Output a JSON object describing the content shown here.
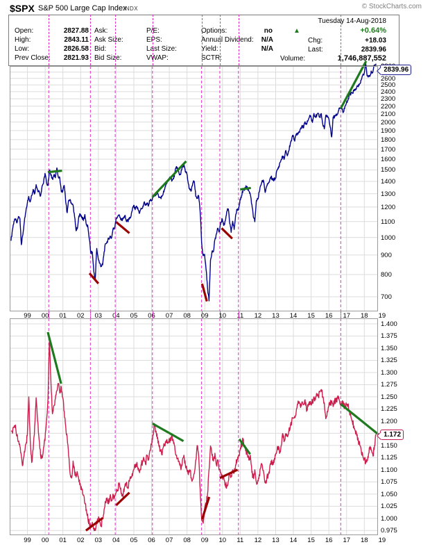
{
  "header": {
    "symbol": "$SPX",
    "name": "S&P 500 Large Cap Index",
    "exchange": "INDX",
    "copyright": "© StockCharts.com",
    "date": "Tuesday 14-Aug-2018"
  },
  "quote": {
    "col1": [
      {
        "label": "Open:",
        "value": "2827.88"
      },
      {
        "label": "High:",
        "value": "2843.11"
      },
      {
        "label": "Low:",
        "value": "2826.58"
      },
      {
        "label": "Prev Close:",
        "value": "2821.93"
      }
    ],
    "col2": [
      "Ask:",
      "Ask Size:",
      "Bid:",
      "Bid Size:"
    ],
    "col3": [
      "P/E:",
      "EPS:",
      "Last Size:",
      "VWAP:"
    ],
    "col4": [
      {
        "label": "Options:",
        "value": "no"
      },
      {
        "label": "Annual Dividend:",
        "value": "N/A"
      },
      {
        "label": "Yield:",
        "value": "N/A"
      },
      {
        "label": "SCTR:",
        "value": ""
      }
    ],
    "up_arrow": "▲",
    "change_pct": "+0.64%",
    "chg_label": "Chg:",
    "chg_value": "+18.03",
    "last_label": "Last:",
    "last_value": "2839.96",
    "volume_label": "Volume:",
    "volume_value": "1,746,887,552"
  },
  "colors": {
    "price_line": "#00008B",
    "ratio_line": "#CC1E4C",
    "trend_green": "#1F7A1F",
    "trend_red": "#990000",
    "event_line_magenta": "#E52EC8",
    "grid": "#DCDCDC",
    "chart_border": "#999999",
    "pct_green": "#1F7A1F"
  },
  "chart_data": [
    {
      "type": "line",
      "series_name": "$SPX S&P 500 Large Cap Index",
      "scale": "log",
      "x_start_year": 1998,
      "step_months": 1,
      "x_tick_years": [
        1999,
        2000,
        2001,
        2002,
        2003,
        2004,
        2005,
        2006,
        2007,
        2008,
        2009,
        2010,
        2011,
        2012,
        2013,
        2014,
        2015,
        2016,
        2017,
        2018,
        2019
      ],
      "x_tick_labels": [
        "99",
        "00",
        "01",
        "02",
        "03",
        "04",
        "05",
        "06",
        "07",
        "08",
        "09",
        "10",
        "11",
        "12",
        "13",
        "14",
        "15",
        "16",
        "17",
        "18",
        "19"
      ],
      "ylim": [
        640,
        2800
      ],
      "y_ticks": {
        "min": 700,
        "max": 2800,
        "step": 100,
        "decimals": 0
      },
      "last_label": "2839.96",
      "values": [
        980,
        1049,
        1102,
        1112,
        1091,
        1134,
        1121,
        957,
        1017,
        1099,
        1164,
        1229,
        1279,
        1238,
        1286,
        1335,
        1302,
        1373,
        1329,
        1320,
        1283,
        1363,
        1389,
        1469,
        1394,
        1366,
        1499,
        1452,
        1421,
        1455,
        1431,
        1518,
        1437,
        1429,
        1315,
        1320,
        1366,
        1240,
        1160,
        1249,
        1256,
        1224,
        1211,
        1134,
        1041,
        1060,
        1139,
        1148,
        1130,
        1107,
        1147,
        1077,
        1067,
        990,
        912,
        916,
        815,
        776,
        936,
        880,
        856,
        841,
        848,
        917,
        964,
        975,
        990,
        1008,
        996,
        1051,
        1058,
        1112,
        1131,
        1145,
        1126,
        1107,
        1121,
        1141,
        1102,
        1104,
        1115,
        1130,
        1174,
        1212,
        1181,
        1204,
        1181,
        1157,
        1192,
        1191,
        1234,
        1220,
        1229,
        1207,
        1249,
        1248,
        1280,
        1281,
        1295,
        1311,
        1270,
        1270,
        1277,
        1304,
        1336,
        1378,
        1401,
        1418,
        1438,
        1407,
        1421,
        1482,
        1531,
        1503,
        1455,
        1474,
        1527,
        1549,
        1481,
        1468,
        1379,
        1331,
        1323,
        1386,
        1400,
        1280,
        1267,
        1283,
        1166,
        969,
        896,
        903,
        826,
        735,
        683,
        873,
        919,
        919,
        987,
        1021,
        1057,
        1036,
        1096,
        1115,
        1074,
        1104,
        1169,
        1187,
        1089,
        1031,
        1102,
        1049,
        1141,
        1183,
        1181,
        1258,
        1286,
        1327,
        1326,
        1364,
        1345,
        1321,
        1292,
        1219,
        1131,
        1099,
        1247,
        1258,
        1312,
        1366,
        1408,
        1398,
        1310,
        1362,
        1379,
        1407,
        1441,
        1412,
        1416,
        1426,
        1498,
        1515,
        1569,
        1598,
        1631,
        1606,
        1686,
        1633,
        1682,
        1757,
        1806,
        1848,
        1783,
        1859,
        1872,
        1884,
        1924,
        1960,
        1931,
        2003,
        1972,
        2018,
        2068,
        2059,
        1995,
        2105,
        2068,
        2086,
        2107,
        2063,
        2104,
        1972,
        1920,
        2079,
        2080,
        2044,
        1940,
        1829,
        2060,
        2065,
        2097,
        2099,
        2174,
        2171,
        2168,
        2126,
        2199,
        2239,
        2279,
        2364,
        2363,
        2384,
        2412,
        2423,
        2470,
        2472,
        2519,
        2575,
        2648,
        2674,
        2872,
        2640,
        2641,
        2648,
        2705,
        2718,
        2816,
        2839.96
      ],
      "trendlines": [
        {
          "x1": 2000.15,
          "y1": 1480,
          "x2": 2000.95,
          "y2": 1493,
          "color": "green"
        },
        {
          "x1": 2002.5,
          "y1": 806,
          "x2": 2003.0,
          "y2": 758,
          "color": "red"
        },
        {
          "x1": 2004.0,
          "y1": 1097,
          "x2": 2004.75,
          "y2": 1026,
          "color": "red"
        },
        {
          "x1": 2006.05,
          "y1": 1275,
          "x2": 2007.95,
          "y2": 1580,
          "color": "green"
        },
        {
          "x1": 2008.85,
          "y1": 757,
          "x2": 2009.12,
          "y2": 681,
          "color": "red"
        },
        {
          "x1": 2009.95,
          "y1": 1057,
          "x2": 2010.55,
          "y2": 993,
          "color": "red"
        },
        {
          "x1": 2011.0,
          "y1": 1334,
          "x2": 2011.6,
          "y2": 1346,
          "color": "green"
        },
        {
          "x1": 2016.67,
          "y1": 2170,
          "x2": 2018.1,
          "y2": 2884,
          "color": "green"
        }
      ],
      "vlines": [
        2000.2,
        2002.55,
        2003.95,
        2006.05,
        2008.82,
        2009.85,
        2010.9,
        2016.67
      ]
    },
    {
      "type": "line",
      "series_name": "lower ratio panel",
      "scale": "linear",
      "x_start_year": 1998,
      "step_months": 1,
      "x_tick_years": [
        1999,
        2000,
        2001,
        2002,
        2003,
        2004,
        2005,
        2006,
        2007,
        2008,
        2009,
        2010,
        2011,
        2012,
        2013,
        2014,
        2015,
        2016,
        2017,
        2018,
        2019
      ],
      "x_tick_labels": [
        "99",
        "00",
        "01",
        "02",
        "03",
        "04",
        "05",
        "06",
        "07",
        "08",
        "09",
        "10",
        "11",
        "12",
        "13",
        "14",
        "15",
        "16",
        "17",
        "18",
        "19"
      ],
      "ylim": [
        0.965,
        1.411
      ],
      "y_ticks": {
        "min": 0.975,
        "max": 1.4,
        "step": 0.025,
        "decimals": 3
      },
      "last_label": "1.172",
      "values": [
        1.18,
        1.175,
        1.188,
        1.192,
        1.17,
        1.158,
        1.148,
        1.128,
        1.11,
        1.138,
        1.152,
        1.17,
        1.25,
        1.16,
        1.115,
        1.142,
        1.19,
        1.248,
        1.2,
        1.162,
        1.13,
        1.124,
        1.146,
        1.16,
        1.2,
        1.245,
        1.37,
        1.282,
        1.215,
        1.232,
        1.246,
        1.262,
        1.277,
        1.258,
        1.27,
        1.248,
        1.22,
        1.19,
        1.166,
        1.128,
        1.092,
        1.083,
        1.118,
        1.098,
        1.085,
        1.092,
        1.075,
        1.068,
        1.058,
        1.048,
        1.03,
        1.018,
        1.0,
        0.99,
        0.984,
        0.992,
        0.98,
        0.975,
        0.992,
        0.998,
        0.993,
        0.985,
        1.0,
        1.018,
        1.035,
        1.042,
        1.03,
        1.046,
        1.036,
        1.05,
        1.042,
        1.052,
        1.056,
        1.07,
        1.06,
        1.046,
        1.052,
        1.066,
        1.072,
        1.062,
        1.076,
        1.082,
        1.092,
        1.1,
        1.106,
        1.112,
        1.1,
        1.094,
        1.11,
        1.116,
        1.122,
        1.112,
        1.13,
        1.12,
        1.14,
        1.152,
        1.172,
        1.195,
        1.18,
        1.164,
        1.15,
        1.14,
        1.131,
        1.146,
        1.152,
        1.16,
        1.154,
        1.164,
        1.16,
        1.17,
        1.154,
        1.14,
        1.13,
        1.124,
        1.112,
        1.1,
        1.12,
        1.13,
        1.11,
        1.1,
        1.09,
        1.1,
        1.084,
        1.08,
        1.092,
        1.12,
        1.15,
        1.128,
        1.06,
        1.0,
        0.99,
        1.02,
        1.032,
        1.05,
        1.1,
        1.149,
        1.13,
        1.118,
        1.134,
        1.11,
        1.12,
        1.1,
        1.094,
        1.085,
        1.084,
        1.07,
        1.066,
        1.076,
        1.094,
        1.088,
        1.1,
        1.094,
        1.11,
        1.12,
        1.13,
        1.14,
        1.15,
        1.163,
        1.15,
        1.14,
        1.13,
        1.12,
        1.13,
        1.094,
        1.084,
        1.1,
        1.075,
        1.078,
        1.09,
        1.104,
        1.11,
        1.094,
        1.073,
        1.08,
        1.09,
        1.1,
        1.118,
        1.11,
        1.115,
        1.13,
        1.14,
        1.148,
        1.137,
        1.15,
        1.174,
        1.16,
        1.174,
        1.168,
        1.18,
        1.19,
        1.2,
        1.206,
        1.21,
        1.22,
        1.234,
        1.24,
        1.228,
        1.24,
        1.234,
        1.244,
        1.22,
        1.23,
        1.24,
        1.235,
        1.24,
        1.25,
        1.244,
        1.254,
        1.25,
        1.26,
        1.265,
        1.25,
        1.238,
        1.205,
        1.22,
        1.23,
        1.235,
        1.242,
        1.23,
        1.244,
        1.24,
        1.25,
        1.244,
        1.236,
        1.24,
        1.235,
        1.228,
        1.234,
        1.235,
        1.222,
        1.21,
        1.2,
        1.19,
        1.18,
        1.17,
        1.16,
        1.15,
        1.14,
        1.13,
        1.124,
        1.114,
        1.12,
        1.134,
        1.148,
        1.14,
        1.128,
        1.15,
        1.172
      ],
      "trendlines": [
        {
          "x1": 2000.15,
          "y1": 1.383,
          "x2": 2000.9,
          "y2": 1.277,
          "color": "green"
        },
        {
          "x1": 2002.3,
          "y1": 0.975,
          "x2": 2003.25,
          "y2": 1.001,
          "color": "red"
        },
        {
          "x1": 2004.0,
          "y1": 1.027,
          "x2": 2004.75,
          "y2": 1.053,
          "color": "red"
        },
        {
          "x1": 2006.05,
          "y1": 1.195,
          "x2": 2007.8,
          "y2": 1.159,
          "color": "green"
        },
        {
          "x1": 2008.85,
          "y1": 0.998,
          "x2": 2009.25,
          "y2": 1.044,
          "color": "red"
        },
        {
          "x1": 2009.85,
          "y1": 1.083,
          "x2": 2010.85,
          "y2": 1.1,
          "color": "red"
        },
        {
          "x1": 2010.95,
          "y1": 1.163,
          "x2": 2011.56,
          "y2": 1.132,
          "color": "green"
        },
        {
          "x1": 2016.67,
          "y1": 1.235,
          "x2": 2018.95,
          "y2": 1.168,
          "color": "green"
        }
      ],
      "vlines": [
        2000.2,
        2002.55,
        2003.95,
        2006.05,
        2008.82,
        2009.85,
        2010.9,
        2016.67
      ]
    }
  ]
}
